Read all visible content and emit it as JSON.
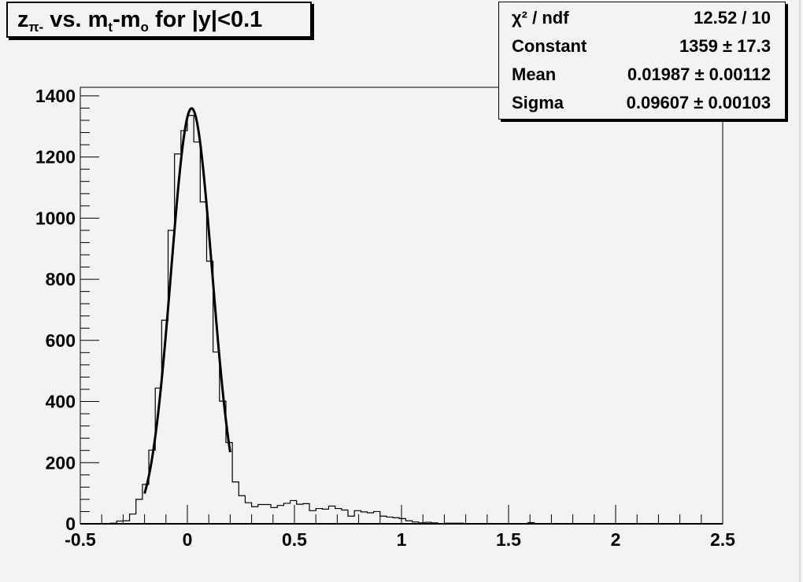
{
  "chart_data": {
    "type": "histogram",
    "title": {
      "main": "z",
      "sub_pi": "π-",
      "mid": " vs. m",
      "sub_t": "t",
      "mid2": "-m",
      "sub_o": "o",
      "tail": " for |y|<0.1"
    },
    "xlim": [
      -0.5,
      2.5
    ],
    "ylim": [
      0,
      1428
    ],
    "x_ticks": [
      "-0.5",
      "0",
      "0.5",
      "1",
      "1.5",
      "2",
      "2.5"
    ],
    "y_ticks": [
      "0",
      "200",
      "400",
      "600",
      "800",
      "1000",
      "1200",
      "1400"
    ],
    "grid": false,
    "bin_width": 0.03,
    "bins": [
      [
        -0.36,
        2
      ],
      [
        -0.33,
        9
      ],
      [
        -0.3,
        10
      ],
      [
        -0.27,
        32
      ],
      [
        -0.24,
        80
      ],
      [
        -0.21,
        129
      ],
      [
        -0.18,
        241
      ],
      [
        -0.15,
        444
      ],
      [
        -0.12,
        666
      ],
      [
        -0.09,
        960
      ],
      [
        -0.06,
        1210
      ],
      [
        -0.03,
        1286
      ],
      [
        0.0,
        1336
      ],
      [
        0.03,
        1249
      ],
      [
        0.06,
        1053
      ],
      [
        0.09,
        859
      ],
      [
        0.12,
        562
      ],
      [
        0.15,
        401
      ],
      [
        0.18,
        266
      ],
      [
        0.21,
        137
      ],
      [
        0.24,
        92
      ],
      [
        0.27,
        69
      ],
      [
        0.3,
        56
      ],
      [
        0.33,
        63
      ],
      [
        0.36,
        63
      ],
      [
        0.39,
        53
      ],
      [
        0.42,
        60
      ],
      [
        0.45,
        67
      ],
      [
        0.48,
        76
      ],
      [
        0.51,
        64
      ],
      [
        0.54,
        66
      ],
      [
        0.57,
        43
      ],
      [
        0.6,
        50
      ],
      [
        0.63,
        48
      ],
      [
        0.66,
        58
      ],
      [
        0.69,
        50
      ],
      [
        0.72,
        45
      ],
      [
        0.75,
        25
      ],
      [
        0.78,
        43
      ],
      [
        0.81,
        39
      ],
      [
        0.84,
        36
      ],
      [
        0.87,
        40
      ],
      [
        0.9,
        25
      ],
      [
        0.93,
        22
      ],
      [
        0.96,
        20
      ],
      [
        0.99,
        17
      ],
      [
        1.02,
        10
      ],
      [
        1.05,
        6
      ],
      [
        1.08,
        3
      ],
      [
        1.11,
        5
      ],
      [
        1.14,
        3
      ],
      [
        1.17,
        0
      ],
      [
        1.2,
        2
      ],
      [
        1.23,
        2
      ],
      [
        1.26,
        2
      ],
      [
        1.29,
        0
      ],
      [
        1.32,
        0
      ],
      [
        1.35,
        0
      ],
      [
        1.38,
        0
      ],
      [
        1.41,
        1
      ],
      [
        1.44,
        1
      ],
      [
        1.47,
        0
      ],
      [
        1.5,
        1
      ],
      [
        1.53,
        1
      ],
      [
        1.56,
        1
      ],
      [
        1.59,
        4
      ],
      [
        1.62,
        1
      ],
      [
        1.65,
        1
      ],
      [
        1.68,
        0
      ],
      [
        1.71,
        0
      ],
      [
        1.74,
        0
      ],
      [
        1.77,
        0
      ],
      [
        1.8,
        0
      ],
      [
        1.83,
        0
      ],
      [
        1.86,
        0
      ],
      [
        1.89,
        0
      ],
      [
        1.92,
        0
      ],
      [
        1.95,
        1
      ],
      [
        1.98,
        0
      ]
    ],
    "fit": {
      "type": "gaus",
      "constant": 1359,
      "mean": 0.01987,
      "sigma": 0.09607,
      "range": [
        -0.2,
        0.2
      ]
    },
    "stats": [
      {
        "label": "χ² / ndf",
        "value": "12.52 / 10"
      },
      {
        "label": "Constant",
        "value": "1359 ± 17.3"
      },
      {
        "label": "Mean",
        "value": "0.01987 ± 0.00112"
      },
      {
        "label": "Sigma",
        "value": "0.09607 ± 0.00103"
      }
    ],
    "stats_placement": "top-right",
    "colors": {
      "background": "#f3f3f3",
      "line": "#000000"
    }
  }
}
